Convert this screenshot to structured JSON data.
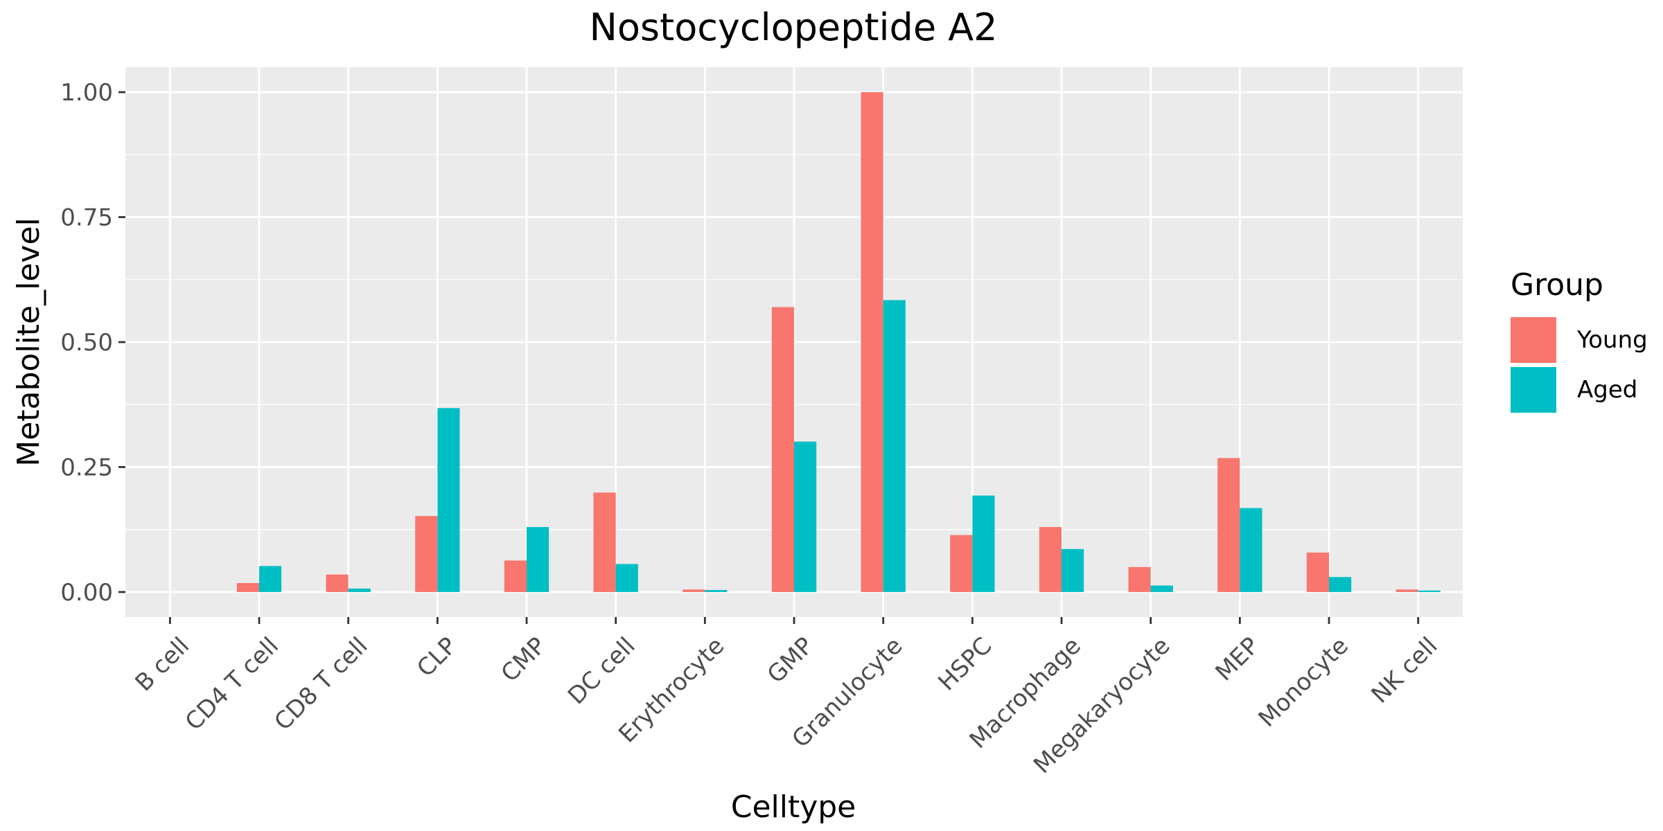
{
  "chart_data": {
    "type": "bar",
    "title": "Nostocyclopeptide A2",
    "xlabel": "Celltype",
    "ylabel": "Metabolite_level",
    "ylim": [
      -0.05,
      1.05
    ],
    "yticks": [
      0.0,
      0.25,
      0.5,
      0.75,
      1.0
    ],
    "ytick_labels": [
      "0.00",
      "0.25",
      "0.50",
      "0.75",
      "1.00"
    ],
    "grid": true,
    "legend": {
      "title": "Group",
      "position": "right"
    },
    "categories": [
      "B cell",
      "CD4 T cell",
      "CD8 T cell",
      "CLP",
      "CMP",
      "DC cell",
      "Erythrocyte",
      "GMP",
      "Granulocyte",
      "HSPC",
      "Macrophage",
      "Megakaryocyte",
      "MEP",
      "Monocyte",
      "NK cell"
    ],
    "series": [
      {
        "name": "Young",
        "color": "#F8766D",
        "values": [
          0.0,
          0.018,
          0.035,
          0.152,
          0.063,
          0.199,
          0.005,
          0.57,
          1.0,
          0.114,
          0.13,
          0.05,
          0.268,
          0.079,
          0.005
        ]
      },
      {
        "name": "Aged",
        "color": "#00BFC4",
        "values": [
          0.0,
          0.052,
          0.007,
          0.368,
          0.13,
          0.056,
          0.004,
          0.301,
          0.584,
          0.193,
          0.086,
          0.013,
          0.168,
          0.03,
          0.003
        ]
      }
    ]
  }
}
